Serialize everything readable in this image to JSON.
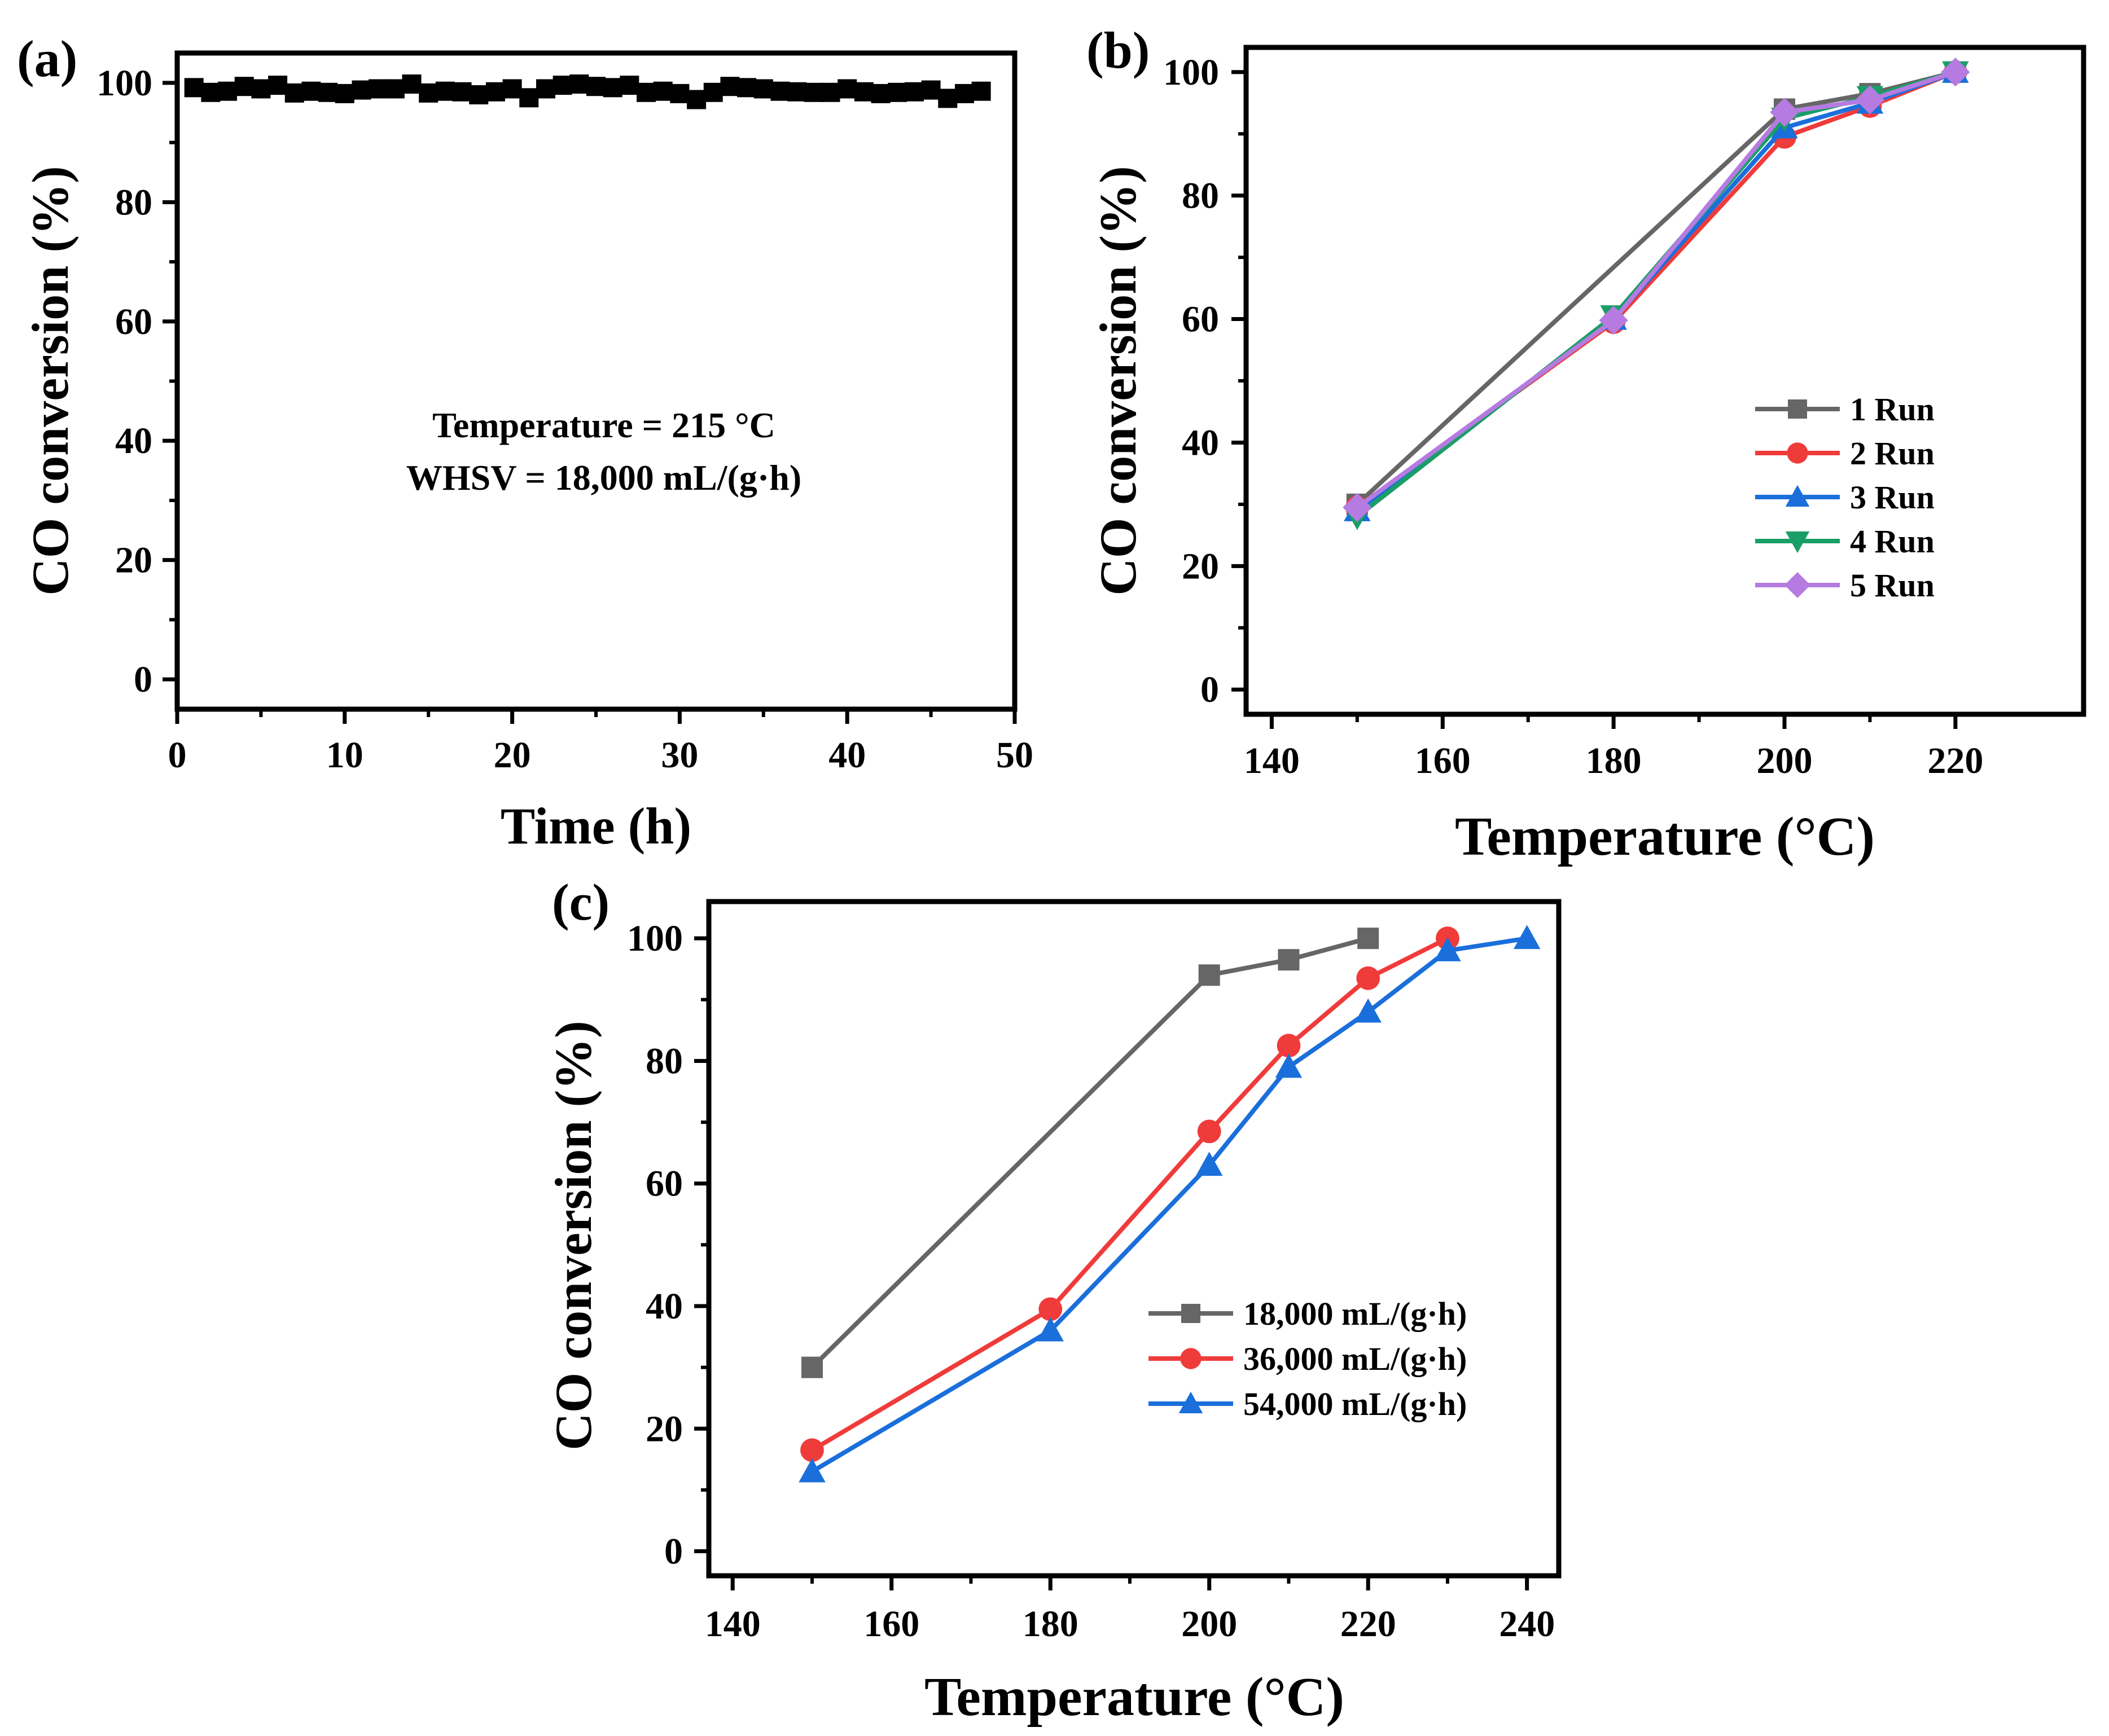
{
  "chart_data": [
    {
      "panel": "(a)",
      "type": "scatter",
      "xlabel": "Time (h)",
      "ylabel": "CO conversion (%)",
      "xlim": [
        0,
        50
      ],
      "ylim": [
        -5,
        105
      ],
      "xticks": [
        0,
        10,
        20,
        30,
        40,
        50
      ],
      "yticks": [
        0,
        20,
        40,
        60,
        80,
        100
      ],
      "annotations": [
        "Temperature = 215 °C",
        "WHSV = 18,000 mL/(g·h)"
      ],
      "series": [
        {
          "name": "CO conversion",
          "color": "#000000",
          "marker": "square",
          "x": [
            1,
            2,
            3,
            4,
            5,
            6,
            7,
            8,
            9,
            10,
            11,
            12,
            13,
            14,
            15,
            16,
            17,
            18,
            19,
            20,
            21,
            22,
            23,
            24,
            25,
            26,
            27,
            28,
            29,
            30,
            31,
            32,
            33,
            34,
            35,
            36,
            37,
            38,
            39,
            40,
            41,
            42,
            43,
            44,
            45,
            46,
            47,
            48
          ],
          "y": [
            99.2,
            98.4,
            98.6,
            99.4,
            99.0,
            99.6,
            98.3,
            98.6,
            98.4,
            98.2,
            98.8,
            99.0,
            99.0,
            99.8,
            98.3,
            98.6,
            98.5,
            98.0,
            98.5,
            99.0,
            97.5,
            99.0,
            99.6,
            99.8,
            99.4,
            99.2,
            99.6,
            98.4,
            98.6,
            98.2,
            97.2,
            98.4,
            99.4,
            99.2,
            99.0,
            98.6,
            98.5,
            98.4,
            98.4,
            99.0,
            98.5,
            98.2,
            98.4,
            98.5,
            98.8,
            97.4,
            98.2,
            98.6
          ]
        }
      ]
    },
    {
      "panel": "(b)",
      "type": "line",
      "xlabel": "Temperature (°C)",
      "ylabel": "CO conversion (%)",
      "xlim": [
        137,
        235
      ],
      "ylim": [
        -4,
        104
      ],
      "xticks": [
        140,
        160,
        180,
        200,
        220
      ],
      "yticks": [
        0,
        20,
        40,
        60,
        80,
        100
      ],
      "legend_position": "center-right",
      "series": [
        {
          "name": "1 Run",
          "color": "#666666",
          "marker": "square",
          "x": [
            150,
            200,
            210,
            220
          ],
          "y": [
            30.0,
            94.0,
            96.5,
            100.0
          ]
        },
        {
          "name": "2 Run",
          "color": "#f03b3b",
          "marker": "circle",
          "x": [
            150,
            180,
            200,
            210,
            220
          ],
          "y": [
            29.5,
            59.5,
            89.5,
            94.5,
            100.0
          ]
        },
        {
          "name": "3 Run",
          "color": "#1a6fdb",
          "marker": "triangle-up",
          "x": [
            150,
            180,
            200,
            210,
            220
          ],
          "y": [
            29.0,
            60.0,
            91.0,
            95.0,
            100.0
          ]
        },
        {
          "name": "4 Run",
          "color": "#1a9e68",
          "marker": "triangle-down",
          "x": [
            150,
            180,
            200,
            210,
            220
          ],
          "y": [
            28.0,
            60.5,
            92.5,
            96.0,
            100.0
          ]
        },
        {
          "name": "5 Run",
          "color": "#b57be0",
          "marker": "diamond",
          "x": [
            150,
            180,
            200,
            210,
            220
          ],
          "y": [
            29.5,
            59.8,
            93.5,
            95.5,
            100.0
          ]
        }
      ]
    },
    {
      "panel": "(c)",
      "type": "line",
      "xlabel": "Temperature (°C)",
      "ylabel": "CO conversion (%)",
      "xlim": [
        137,
        244
      ],
      "ylim": [
        -4,
        106
      ],
      "xticks": [
        140,
        160,
        180,
        200,
        220,
        240
      ],
      "yticks": [
        0,
        20,
        40,
        60,
        80,
        100
      ],
      "legend_position": "center-right",
      "series": [
        {
          "name": "18,000 mL/(g·h)",
          "color": "#666666",
          "marker": "square",
          "x": [
            150,
            200,
            210,
            220
          ],
          "y": [
            30.0,
            94.0,
            96.5,
            100.0
          ]
        },
        {
          "name": "36,000 mL/(g·h)",
          "color": "#f03b3b",
          "marker": "circle",
          "x": [
            150,
            180,
            200,
            210,
            220,
            230
          ],
          "y": [
            16.5,
            39.5,
            68.5,
            82.5,
            93.5,
            100.0
          ]
        },
        {
          "name": "54,000 mL/(g·h)",
          "color": "#1a6fdb",
          "marker": "triangle-up",
          "x": [
            150,
            180,
            200,
            210,
            220,
            230,
            240
          ],
          "y": [
            13.0,
            36.0,
            63.0,
            79.0,
            88.0,
            98.0,
            100.0
          ]
        }
      ]
    }
  ]
}
